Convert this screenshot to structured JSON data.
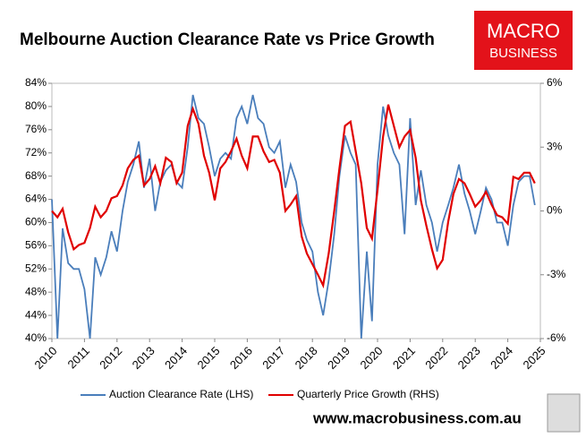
{
  "chart_data": {
    "type": "line",
    "title": "Melbourne Auction Clearance Rate vs Price Growth",
    "logo": {
      "line1": "MACRO",
      "line2": "BUSINESS"
    },
    "footer": "www.macrobusiness.com.au",
    "x": [
      2010,
      2010.17,
      2010.33,
      2010.5,
      2010.67,
      2010.83,
      2011,
      2011.17,
      2011.33,
      2011.5,
      2011.67,
      2011.83,
      2012,
      2012.17,
      2012.33,
      2012.5,
      2012.67,
      2012.83,
      2013,
      2013.17,
      2013.33,
      2013.5,
      2013.67,
      2013.83,
      2014,
      2014.17,
      2014.33,
      2014.5,
      2014.67,
      2014.83,
      2015,
      2015.17,
      2015.33,
      2015.5,
      2015.67,
      2015.83,
      2016,
      2016.17,
      2016.33,
      2016.5,
      2016.67,
      2016.83,
      2017,
      2017.17,
      2017.33,
      2017.5,
      2017.67,
      2017.83,
      2018,
      2018.17,
      2018.33,
      2018.5,
      2018.67,
      2018.83,
      2019,
      2019.17,
      2019.33,
      2019.5,
      2019.67,
      2019.83,
      2020,
      2020.17,
      2020.33,
      2020.5,
      2020.67,
      2020.83,
      2021,
      2021.17,
      2021.33,
      2021.5,
      2021.67,
      2021.83,
      2022,
      2022.17,
      2022.33,
      2022.5,
      2022.67,
      2022.83,
      2023,
      2023.17,
      2023.33,
      2023.5,
      2023.67,
      2023.83,
      2024,
      2024.17,
      2024.33,
      2024.5,
      2024.67,
      2024.83
    ],
    "series": [
      {
        "name": "Auction Clearance Rate (LHS)",
        "color": "#4a7ebb",
        "axis": "y",
        "values": [
          64,
          40,
          59,
          53,
          52,
          52,
          48.5,
          40,
          54,
          51,
          54,
          58.5,
          55,
          62,
          67,
          70,
          74,
          66,
          71,
          62,
          67,
          69,
          70,
          67,
          66,
          73,
          82,
          78,
          77,
          73,
          68,
          71,
          72,
          71,
          78,
          80,
          77,
          82,
          78,
          77,
          73,
          72,
          74,
          66,
          70,
          67,
          60,
          57,
          55,
          48,
          44,
          50,
          58,
          68,
          75,
          72,
          70,
          40,
          55,
          43,
          70,
          80,
          75,
          72,
          70,
          58,
          78,
          63,
          69,
          63,
          60,
          55,
          60,
          63,
          66,
          70,
          65,
          62,
          58,
          62,
          66,
          64,
          60,
          60,
          56,
          63,
          67,
          68,
          68,
          63
        ]
      },
      {
        "name": "Quarterly Price Growth (RHS)",
        "color": "#e00000",
        "axis": "y2",
        "values": [
          0,
          -0.3,
          0.1,
          -1,
          -1.8,
          -1.6,
          -1.5,
          -0.8,
          0.2,
          -0.3,
          0,
          0.6,
          0.7,
          1.2,
          2,
          2.4,
          2.6,
          1.2,
          1.5,
          2.1,
          1.3,
          2.5,
          2.3,
          1.3,
          1.8,
          4,
          4.8,
          4.1,
          2.6,
          1.8,
          0.5,
          2,
          2.3,
          2.8,
          3.4,
          2.6,
          2,
          3.5,
          3.5,
          2.8,
          2.3,
          2.4,
          1.8,
          0,
          0.3,
          0.7,
          -1.2,
          -2,
          -2.5,
          -3,
          -3.5,
          -2,
          0,
          2,
          4,
          4.2,
          2.8,
          1.3,
          -0.8,
          -1.3,
          1,
          3.5,
          5,
          4,
          3,
          3.5,
          3.8,
          2.5,
          0.5,
          -0.7,
          -1.8,
          -2.7,
          -2.3,
          -0.5,
          0.8,
          1.5,
          1.3,
          0.8,
          0.2,
          0.5,
          0.9,
          0.3,
          -0.2,
          -0.3,
          -0.6,
          1.6,
          1.5,
          1.8,
          1.8,
          1.3
        ]
      }
    ],
    "xlim": [
      2010,
      2025
    ],
    "xticks": [
      2010,
      2011,
      2012,
      2013,
      2014,
      2015,
      2016,
      2017,
      2018,
      2019,
      2020,
      2021,
      2022,
      2023,
      2024,
      2025
    ],
    "ylim": [
      40,
      84
    ],
    "yticks": [
      {
        "value": 40,
        "label": "40%"
      },
      {
        "value": 44,
        "label": "44%"
      },
      {
        "value": 48,
        "label": "48%"
      },
      {
        "value": 52,
        "label": "52%"
      },
      {
        "value": 56,
        "label": "56%"
      },
      {
        "value": 60,
        "label": "60%"
      },
      {
        "value": 64,
        "label": "64%"
      },
      {
        "value": 68,
        "label": "68%"
      },
      {
        "value": 72,
        "label": "72%"
      },
      {
        "value": 76,
        "label": "76%"
      },
      {
        "value": 80,
        "label": "80%"
      },
      {
        "value": 84,
        "label": "84%"
      }
    ],
    "y2lim": [
      -6,
      6
    ],
    "y2ticks": [
      {
        "value": -6,
        "label": "-6%"
      },
      {
        "value": -3,
        "label": "-3%"
      },
      {
        "value": 0,
        "label": "0%"
      },
      {
        "value": 3,
        "label": "3%"
      },
      {
        "value": 6,
        "label": "6%"
      }
    ]
  }
}
